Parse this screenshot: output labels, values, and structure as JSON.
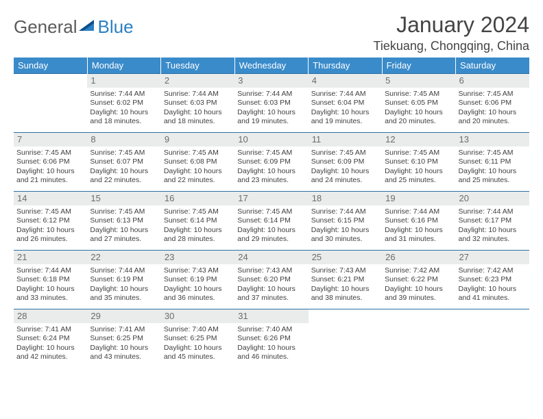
{
  "colors": {
    "header_bg": "#3a8bca",
    "header_text": "#ffffff",
    "rule": "#2d6ea3",
    "daynum_bg": "#e9eceb",
    "daynum_text": "#6b6b6b",
    "body_text": "#3e3e3e",
    "logo_gray": "#5a5a5a",
    "logo_blue": "#2b7fc3",
    "title_text": "#444444"
  },
  "logo": {
    "part1": "General",
    "part2": "Blue"
  },
  "title": "January 2024",
  "location": "Tiekuang, Chongqing, China",
  "weekdays": [
    "Sunday",
    "Monday",
    "Tuesday",
    "Wednesday",
    "Thursday",
    "Friday",
    "Saturday"
  ],
  "first_weekday_index": 1,
  "days": [
    {
      "n": 1,
      "sunrise": "7:44 AM",
      "sunset": "6:02 PM",
      "daylight": "10 hours and 18 minutes."
    },
    {
      "n": 2,
      "sunrise": "7:44 AM",
      "sunset": "6:03 PM",
      "daylight": "10 hours and 18 minutes."
    },
    {
      "n": 3,
      "sunrise": "7:44 AM",
      "sunset": "6:03 PM",
      "daylight": "10 hours and 19 minutes."
    },
    {
      "n": 4,
      "sunrise": "7:44 AM",
      "sunset": "6:04 PM",
      "daylight": "10 hours and 19 minutes."
    },
    {
      "n": 5,
      "sunrise": "7:45 AM",
      "sunset": "6:05 PM",
      "daylight": "10 hours and 20 minutes."
    },
    {
      "n": 6,
      "sunrise": "7:45 AM",
      "sunset": "6:06 PM",
      "daylight": "10 hours and 20 minutes."
    },
    {
      "n": 7,
      "sunrise": "7:45 AM",
      "sunset": "6:06 PM",
      "daylight": "10 hours and 21 minutes."
    },
    {
      "n": 8,
      "sunrise": "7:45 AM",
      "sunset": "6:07 PM",
      "daylight": "10 hours and 22 minutes."
    },
    {
      "n": 9,
      "sunrise": "7:45 AM",
      "sunset": "6:08 PM",
      "daylight": "10 hours and 22 minutes."
    },
    {
      "n": 10,
      "sunrise": "7:45 AM",
      "sunset": "6:09 PM",
      "daylight": "10 hours and 23 minutes."
    },
    {
      "n": 11,
      "sunrise": "7:45 AM",
      "sunset": "6:09 PM",
      "daylight": "10 hours and 24 minutes."
    },
    {
      "n": 12,
      "sunrise": "7:45 AM",
      "sunset": "6:10 PM",
      "daylight": "10 hours and 25 minutes."
    },
    {
      "n": 13,
      "sunrise": "7:45 AM",
      "sunset": "6:11 PM",
      "daylight": "10 hours and 25 minutes."
    },
    {
      "n": 14,
      "sunrise": "7:45 AM",
      "sunset": "6:12 PM",
      "daylight": "10 hours and 26 minutes."
    },
    {
      "n": 15,
      "sunrise": "7:45 AM",
      "sunset": "6:13 PM",
      "daylight": "10 hours and 27 minutes."
    },
    {
      "n": 16,
      "sunrise": "7:45 AM",
      "sunset": "6:14 PM",
      "daylight": "10 hours and 28 minutes."
    },
    {
      "n": 17,
      "sunrise": "7:45 AM",
      "sunset": "6:14 PM",
      "daylight": "10 hours and 29 minutes."
    },
    {
      "n": 18,
      "sunrise": "7:44 AM",
      "sunset": "6:15 PM",
      "daylight": "10 hours and 30 minutes."
    },
    {
      "n": 19,
      "sunrise": "7:44 AM",
      "sunset": "6:16 PM",
      "daylight": "10 hours and 31 minutes."
    },
    {
      "n": 20,
      "sunrise": "7:44 AM",
      "sunset": "6:17 PM",
      "daylight": "10 hours and 32 minutes."
    },
    {
      "n": 21,
      "sunrise": "7:44 AM",
      "sunset": "6:18 PM",
      "daylight": "10 hours and 33 minutes."
    },
    {
      "n": 22,
      "sunrise": "7:44 AM",
      "sunset": "6:19 PM",
      "daylight": "10 hours and 35 minutes."
    },
    {
      "n": 23,
      "sunrise": "7:43 AM",
      "sunset": "6:19 PM",
      "daylight": "10 hours and 36 minutes."
    },
    {
      "n": 24,
      "sunrise": "7:43 AM",
      "sunset": "6:20 PM",
      "daylight": "10 hours and 37 minutes."
    },
    {
      "n": 25,
      "sunrise": "7:43 AM",
      "sunset": "6:21 PM",
      "daylight": "10 hours and 38 minutes."
    },
    {
      "n": 26,
      "sunrise": "7:42 AM",
      "sunset": "6:22 PM",
      "daylight": "10 hours and 39 minutes."
    },
    {
      "n": 27,
      "sunrise": "7:42 AM",
      "sunset": "6:23 PM",
      "daylight": "10 hours and 41 minutes."
    },
    {
      "n": 28,
      "sunrise": "7:41 AM",
      "sunset": "6:24 PM",
      "daylight": "10 hours and 42 minutes."
    },
    {
      "n": 29,
      "sunrise": "7:41 AM",
      "sunset": "6:25 PM",
      "daylight": "10 hours and 43 minutes."
    },
    {
      "n": 30,
      "sunrise": "7:40 AM",
      "sunset": "6:25 PM",
      "daylight": "10 hours and 45 minutes."
    },
    {
      "n": 31,
      "sunrise": "7:40 AM",
      "sunset": "6:26 PM",
      "daylight": "10 hours and 46 minutes."
    }
  ],
  "labels": {
    "sunrise": "Sunrise:",
    "sunset": "Sunset:",
    "daylight": "Daylight:"
  }
}
